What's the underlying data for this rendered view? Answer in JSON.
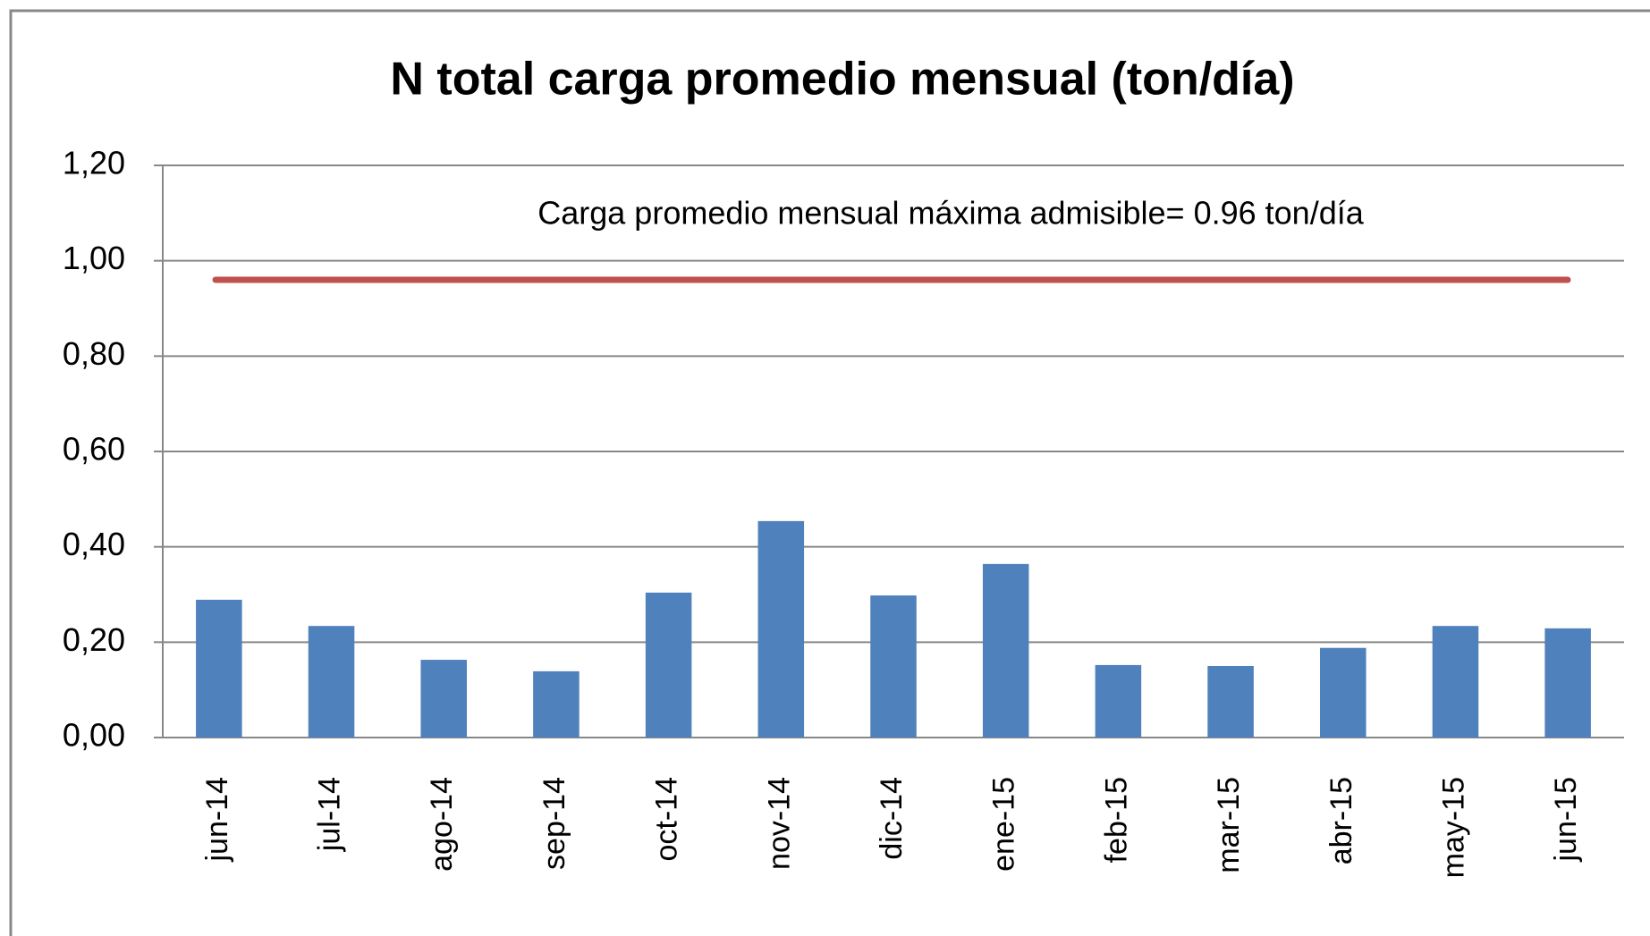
{
  "chart_data": {
    "type": "bar",
    "title": "N total carga promedio mensual (ton/día)",
    "annotation": "Carga promedio mensual máxima admisible= 0.96 ton/día",
    "categories": [
      "jun-14",
      "jul-14",
      "ago-14",
      "sep-14",
      "oct-14",
      "nov-14",
      "dic-14",
      "ene-15",
      "feb-15",
      "mar-15",
      "abr-15",
      "may-15",
      "jun-15"
    ],
    "values": [
      0.289,
      0.234,
      0.163,
      0.139,
      0.304,
      0.454,
      0.298,
      0.364,
      0.152,
      0.15,
      0.188,
      0.234,
      0.229
    ],
    "color": "#4f81bd",
    "reference_line": {
      "value": 0.96,
      "color": "#c0504d"
    },
    "ylim": [
      0,
      1.2
    ],
    "yticks": [
      {
        "value": 0,
        "label": "0,00"
      },
      {
        "value": 0.2,
        "label": "0,20"
      },
      {
        "value": 0.4,
        "label": "0,40"
      },
      {
        "value": 0.6,
        "label": "0,60"
      },
      {
        "value": 0.8,
        "label": "0,80"
      },
      {
        "value": 1.0,
        "label": "1,00"
      },
      {
        "value": 1.2,
        "label": "1,20"
      }
    ],
    "grid": true
  }
}
